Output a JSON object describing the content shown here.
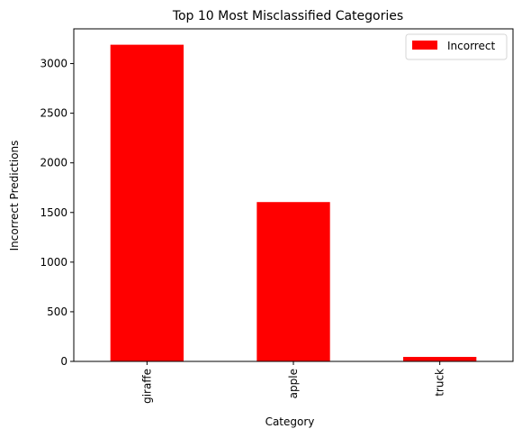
{
  "chart_data": {
    "type": "bar",
    "title": "Top 10 Most Misclassified Categories",
    "xlabel": "Category",
    "ylabel": "Incorrect Predictions",
    "categories": [
      "giraffe",
      "apple",
      "truck"
    ],
    "series": [
      {
        "name": "Incorrect",
        "values": [
          3190,
          1605,
          45
        ],
        "color": "#ff0000"
      }
    ],
    "ylim": [
      0,
      3350
    ],
    "yticks": [
      0,
      500,
      1000,
      1500,
      2000,
      2500,
      3000
    ],
    "grid": false,
    "legend_position": "top-right"
  }
}
